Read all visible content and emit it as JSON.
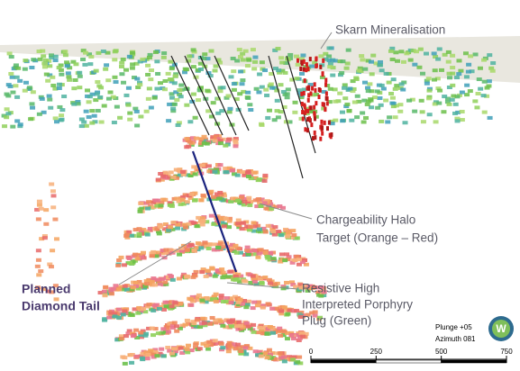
{
  "annotations": {
    "skarn": "Skarn Mineralisation",
    "chargeability": [
      "Chargeability Halo",
      "Target (Orange – Red)"
    ],
    "resistive": [
      "Resistive High",
      "Interpreted Porphyry",
      "Plug (Green)"
    ],
    "planned": [
      "Planned",
      "Diamond Tail"
    ]
  },
  "view": {
    "plunge": "Plunge +05",
    "azimuth": "Azimuth 081",
    "logo": "W"
  },
  "scale_bar": {
    "ticks": [
      0,
      250,
      500,
      750
    ]
  }
}
